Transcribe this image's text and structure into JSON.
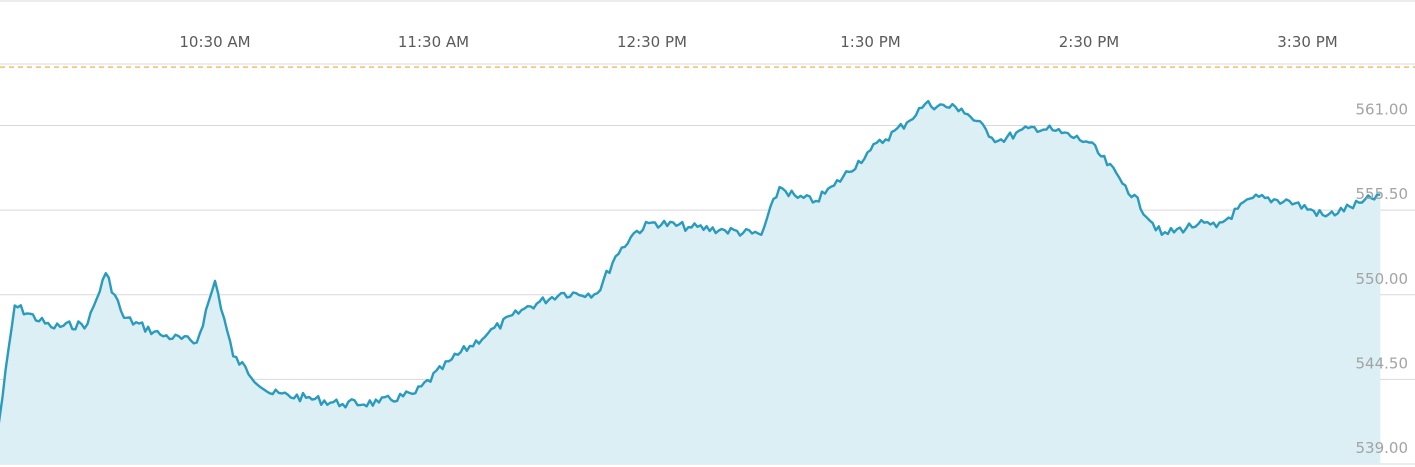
{
  "chart_data": {
    "type": "area",
    "title": "",
    "xlabel": "",
    "ylabel": "",
    "grid": true,
    "x_tick_labels": [
      "10:30 AM",
      "11:30 AM",
      "12:30 PM",
      "1:30 PM",
      "2:30 PM",
      "3:30 PM"
    ],
    "y_tick_labels": [
      "561.00",
      "555.50",
      "550.00",
      "544.50",
      "539.00"
    ],
    "y_ticks": [
      561.0,
      555.5,
      550.0,
      544.5,
      539.0
    ],
    "ylim": [
      539.0,
      565.0
    ],
    "reference_line": {
      "y": 564.8,
      "style": "dashed"
    },
    "colors": {
      "line": "#2a9bbd",
      "fill": "#dbeff5",
      "reference": "#f0a73a",
      "grid": "#d9d9d9"
    },
    "series": [
      {
        "x": [
          "9:30 AM",
          "9:35 AM",
          "9:45 AM",
          "9:55 AM",
          "10:00 AM",
          "10:05 AM",
          "10:15 AM",
          "10:25 AM",
          "10:30 AM",
          "10:35 AM",
          "10:45 AM",
          "10:55 AM",
          "11:05 AM",
          "11:15 AM",
          "11:25 AM",
          "11:35 AM",
          "11:45 AM",
          "11:55 AM",
          "12:05 PM",
          "12:15 PM",
          "12:20 PM",
          "12:25 PM",
          "12:30 PM",
          "12:40 PM",
          "12:50 PM",
          "1:00 PM",
          "1:05 PM",
          "1:10 PM",
          "1:15 PM",
          "1:20 PM",
          "1:30 PM",
          "1:40 PM",
          "1:45 PM",
          "1:55 PM",
          "2:05 PM",
          "2:15 PM",
          "2:20 PM",
          "2:30 PM",
          "2:40 PM",
          "2:50 PM",
          "3:00 PM",
          "3:05 PM",
          "3:15 PM",
          "3:25 PM",
          "3:35 PM",
          "3:45 PM",
          "3:50 PM"
        ],
        "values": [
          540.5,
          549.3,
          547.9,
          548.1,
          551.4,
          548.5,
          547.4,
          546.9,
          550.9,
          546.0,
          543.6,
          543.3,
          542.9,
          543.0,
          543.6,
          545.8,
          547.5,
          549.1,
          550.1,
          550.1,
          552.5,
          554.0,
          554.7,
          554.4,
          554.2,
          553.9,
          557.0,
          556.3,
          556.1,
          557.1,
          559.4,
          561.2,
          562.4,
          562.1,
          560.0,
          560.9,
          560.7,
          559.9,
          557.1,
          553.9,
          554.6,
          554.4,
          556.3,
          556.1,
          555.1,
          556.0,
          556.5
        ]
      }
    ]
  }
}
